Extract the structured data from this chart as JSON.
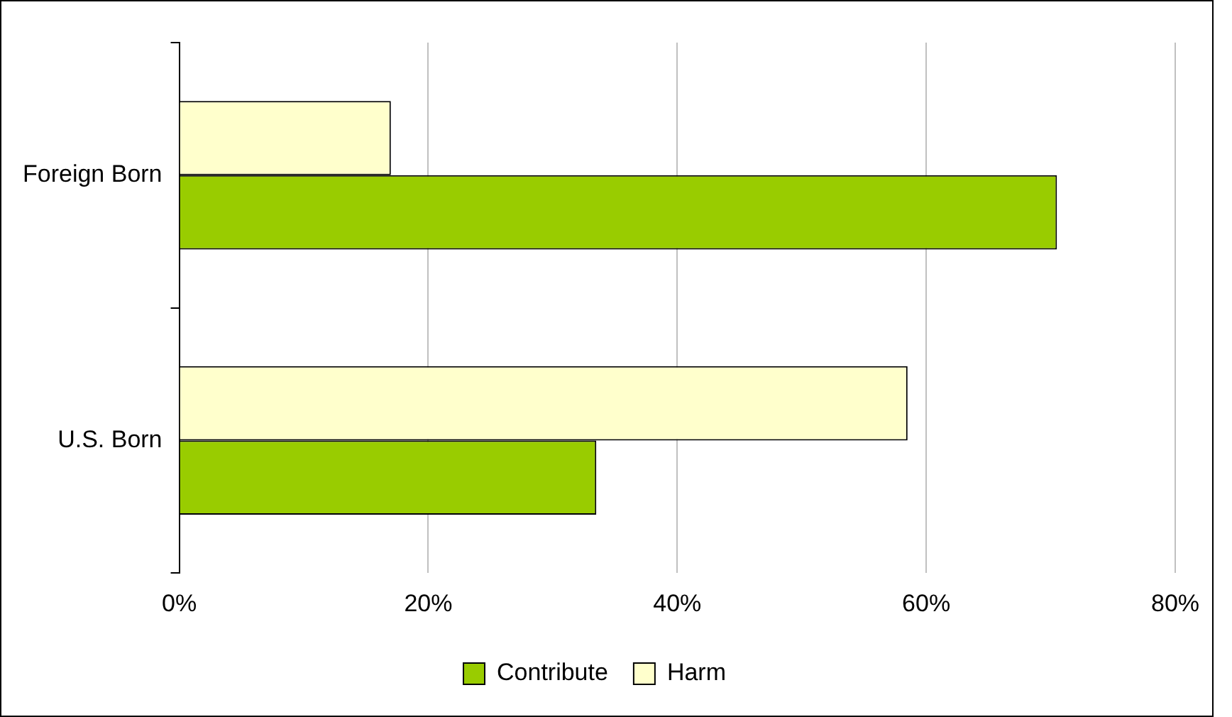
{
  "chart_data": {
    "type": "bar",
    "orientation": "horizontal",
    "categories": [
      "Foreign Born",
      "U.S. Born"
    ],
    "series": [
      {
        "name": "Contribute",
        "color": "#99cc00",
        "values": [
          70.5,
          33.5
        ]
      },
      {
        "name": "Harm",
        "color": "#ffffcc",
        "values": [
          17,
          58.5
        ]
      }
    ],
    "xlim": [
      0,
      80
    ],
    "xticks": [
      {
        "value": 0,
        "label": "0%"
      },
      {
        "value": 20,
        "label": "20%"
      },
      {
        "value": 40,
        "label": "40%"
      },
      {
        "value": 60,
        "label": "60%"
      },
      {
        "value": 80,
        "label": "80%"
      }
    ],
    "grid": "x",
    "legend": "bottom"
  }
}
